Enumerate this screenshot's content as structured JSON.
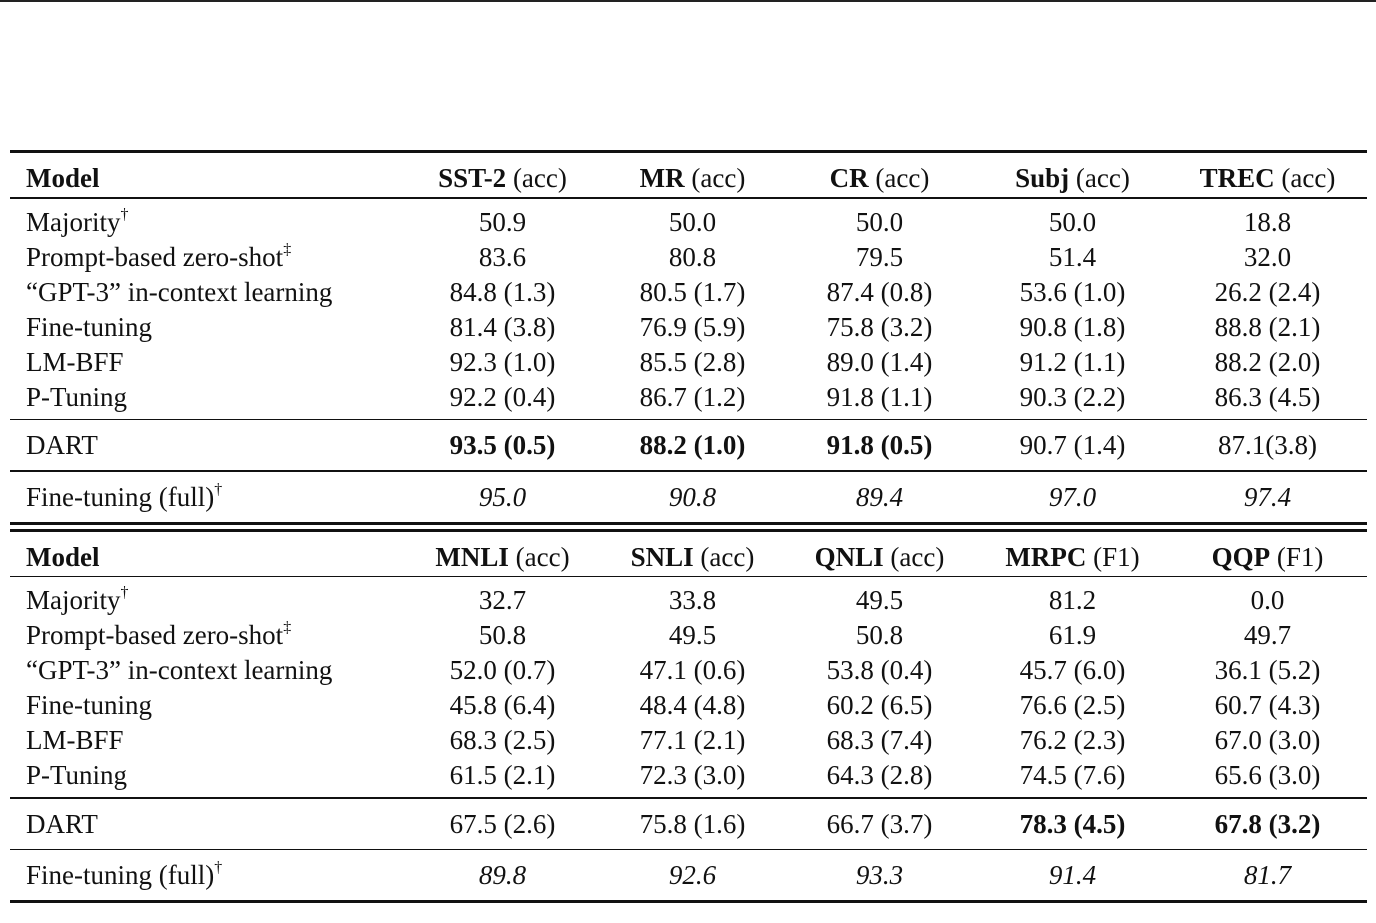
{
  "dagger": "†",
  "ddagger": "‡",
  "acc": "(acc)",
  "f1": "(F1)",
  "table1": {
    "header": {
      "model": "Model",
      "cols": [
        {
          "name": "SST-2",
          "metric": "(acc)"
        },
        {
          "name": "MR",
          "metric": "(acc)"
        },
        {
          "name": "CR",
          "metric": "(acc)"
        },
        {
          "name": "Subj",
          "metric": "(acc)"
        },
        {
          "name": "TREC",
          "metric": "(acc)"
        }
      ]
    },
    "baseline_rows": [
      {
        "label": "Majority",
        "values": [
          "50.9",
          "50.0",
          "50.0",
          "50.0",
          "18.8"
        ]
      },
      {
        "label": "Prompt-based zero-shot",
        "values": [
          "83.6",
          "80.8",
          "79.5",
          "51.4",
          "32.0"
        ]
      },
      {
        "label": "“GPT-3” in-context learning",
        "values": [
          "84.8 (1.3)",
          "80.5 (1.7)",
          "87.4 (0.8)",
          "53.6 (1.0)",
          "26.2 (2.4)"
        ]
      },
      {
        "label": "Fine-tuning",
        "values": [
          "81.4 (3.8)",
          "76.9 (5.9)",
          "75.8 (3.2)",
          "90.8 (1.8)",
          "88.8 (2.1)"
        ]
      },
      {
        "label": "LM-BFF",
        "values": [
          "92.3 (1.0)",
          "85.5 (2.8)",
          "89.0 (1.4)",
          "91.2 (1.1)",
          "88.2 (2.0)"
        ]
      },
      {
        "label": "P-Tuning",
        "values": [
          "92.2 (0.4)",
          "86.7 (1.2)",
          "91.8 (1.1)",
          "90.3 (2.2)",
          "86.3 (4.5)"
        ]
      }
    ],
    "dart": {
      "label": "DART",
      "values": [
        "93.5 (0.5)",
        "88.2 (1.0)",
        "91.8 (0.5)",
        "90.7 (1.4)",
        "87.1(3.8)"
      ]
    },
    "full": {
      "label": "Fine-tuning (full)",
      "values": [
        "95.0",
        "90.8",
        "89.4",
        "97.0",
        "97.4"
      ]
    }
  },
  "table2": {
    "header": {
      "model": "Model",
      "cols": [
        {
          "name": "MNLI",
          "metric": "(acc)"
        },
        {
          "name": "SNLI",
          "metric": "(acc)"
        },
        {
          "name": "QNLI",
          "metric": "(acc)"
        },
        {
          "name": "MRPC",
          "metric": "(F1)"
        },
        {
          "name": "QQP",
          "metric": "(F1)"
        }
      ]
    },
    "baseline_rows": [
      {
        "label": "Majority",
        "values": [
          "32.7",
          "33.8",
          "49.5",
          "81.2",
          "0.0"
        ]
      },
      {
        "label": "Prompt-based zero-shot",
        "values": [
          "50.8",
          "49.5",
          "50.8",
          "61.9",
          "49.7"
        ]
      },
      {
        "label": "“GPT-3” in-context learning",
        "values": [
          "52.0 (0.7)",
          "47.1 (0.6)",
          "53.8 (0.4)",
          "45.7 (6.0)",
          "36.1 (5.2)"
        ]
      },
      {
        "label": "Fine-tuning",
        "values": [
          "45.8 (6.4)",
          "48.4 (4.8)",
          "60.2 (6.5)",
          "76.6 (2.5)",
          "60.7 (4.3)"
        ]
      },
      {
        "label": "LM-BFF",
        "values": [
          "68.3 (2.5)",
          "77.1 (2.1)",
          "68.3 (7.4)",
          "76.2 (2.3)",
          "67.0 (3.0)"
        ]
      },
      {
        "label": "P-Tuning",
        "values": [
          "61.5 (2.1)",
          "72.3 (3.0)",
          "64.3 (2.8)",
          "74.5 (7.6)",
          "65.6 (3.0)"
        ]
      }
    ],
    "dart": {
      "label": "DART",
      "values": [
        "67.5 (2.6)",
        "75.8 (1.6)",
        "66.7 (3.7)",
        "78.3 (4.5)",
        "67.8 (3.2)"
      ]
    },
    "full": {
      "label": "Fine-tuning (full)",
      "values": [
        "89.8",
        "92.6",
        "93.3",
        "91.4",
        "81.7"
      ]
    }
  }
}
